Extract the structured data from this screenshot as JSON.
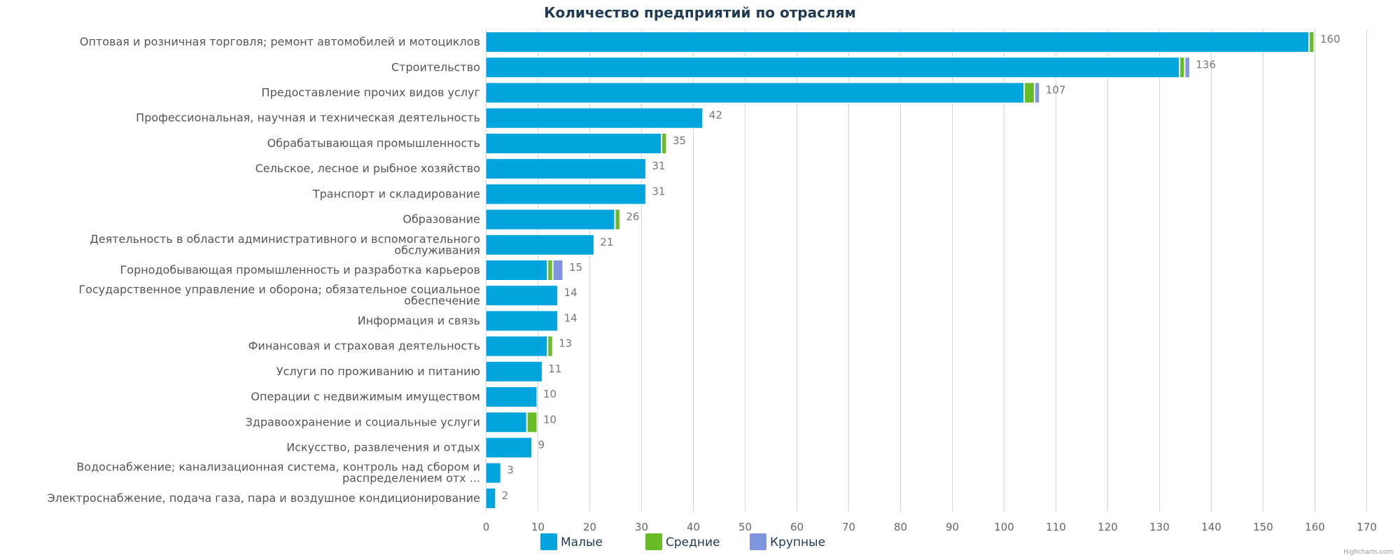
{
  "chart_data": {
    "type": "bar",
    "orientation": "horizontal",
    "stacked": true,
    "title": "Количество предприятий по отраслям",
    "categories": [
      "Оптовая и розничная торговля; ремонт автомобилей и мотоциклов",
      "Строительство",
      "Предоставление прочих видов услуг",
      "Профессиональная, научная и техническая деятельность",
      "Обрабатывающая промышленность",
      "Сельское, лесное и рыбное хозяйство",
      "Транспорт и складирование",
      "Образование",
      "Деятельность в области административного и вспомогательного обслуживания",
      "Горнодобывающая промышленность и разработка карьеров",
      "Государственное управление и оборона; обязательное социальное обеспечение",
      "Информация и связь",
      "Финансовая и страховая деятельность",
      "Услуги по проживанию и питанию",
      "Операции с недвижимым имуществом",
      "Здравоохранение и социальные услуги",
      "Искусство, развлечения и отдых",
      "Водоснабжение; канализационная система, контроль над сбором и распределением отх ...",
      "Электроснабжение, подача газа, пара и воздушное кондиционирование"
    ],
    "series": [
      {
        "name": "Малые",
        "color": "#00a5de",
        "values": [
          159,
          134,
          104,
          42,
          34,
          31,
          31,
          25,
          21,
          12,
          14,
          14,
          12,
          11,
          10,
          8,
          9,
          3,
          2
        ]
      },
      {
        "name": "Средние",
        "color": "#68bc28",
        "values": [
          1,
          1,
          2,
          0,
          1,
          0,
          0,
          1,
          0,
          1,
          0,
          0,
          1,
          0,
          0,
          2,
          0,
          0,
          0
        ]
      },
      {
        "name": "Крупные",
        "color": "#7f95e0",
        "values": [
          0,
          1,
          1,
          0,
          0,
          0,
          0,
          0,
          0,
          2,
          0,
          0,
          0,
          0,
          0,
          0,
          0,
          0,
          0
        ]
      }
    ],
    "totals": [
      160,
      136,
      107,
      42,
      35,
      31,
      31,
      26,
      21,
      15,
      14,
      14,
      13,
      11,
      10,
      10,
      9,
      3,
      2
    ],
    "xlim": [
      0,
      170
    ],
    "xticks": [
      0,
      10,
      20,
      30,
      40,
      50,
      60,
      70,
      80,
      90,
      100,
      110,
      120,
      130,
      140,
      150,
      160,
      170
    ],
    "grid": true,
    "legend_position": "bottom-center",
    "credits": "Highcharts.com"
  }
}
